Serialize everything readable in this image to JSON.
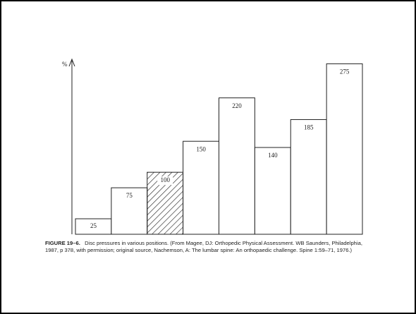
{
  "chart_data": {
    "type": "bar",
    "y_label": "%",
    "categories": [
      null,
      null,
      null,
      null,
      null,
      null,
      null,
      null
    ],
    "values": [
      25,
      75,
      100,
      150,
      220,
      140,
      185,
      275
    ],
    "hatched": [
      false,
      false,
      true,
      false,
      false,
      false,
      false,
      false
    ],
    "color": "#ffffff",
    "ylim": [
      0,
      280
    ],
    "caption_label": "FIGURE 19–6.",
    "caption": "Disc pressures in various positions. (From Magee, DJ: Orthopedic Physical Assessment. WB Saunders, Philadelphia, 1987, p 378, with permission; original source, Nachemson, A: The lumbar spine: An orthopaedic challenge. Spine 1:59–71, 1976.)"
  }
}
